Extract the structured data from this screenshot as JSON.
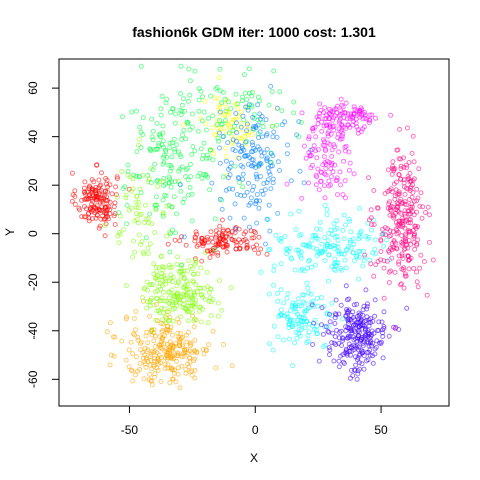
{
  "chart_data": {
    "type": "scatter",
    "title": "fashion6k GDM iter: 1000 cost: 1.301",
    "xlabel": "X",
    "ylabel": "Y",
    "xlim": [
      -78,
      77
    ],
    "ylim": [
      -71,
      72
    ],
    "x_ticks": [
      -50,
      0,
      50
    ],
    "x_tick_labels": [
      "-50",
      "0",
      "50"
    ],
    "y_ticks": [
      -60,
      -40,
      -20,
      0,
      20,
      40,
      60
    ],
    "y_tick_labels": [
      "-60",
      "-40",
      "-20",
      "0",
      "20",
      "40",
      "60"
    ],
    "grid": false,
    "legend": "none",
    "marker": "open-circle",
    "clusters": [
      {
        "color": "#FF0000",
        "center": [
          -63,
          14
        ],
        "spread": [
          5,
          7
        ],
        "count": 150
      },
      {
        "color": "#FF0000",
        "center": [
          -12,
          -3
        ],
        "spread": [
          10,
          4
        ],
        "count": 120
      },
      {
        "color": "#FFA500",
        "center": [
          -35,
          -48
        ],
        "spread": [
          11,
          9
        ],
        "count": 240
      },
      {
        "color": "#FFFF00",
        "center": [
          -10,
          45
        ],
        "spread": [
          8,
          8
        ],
        "count": 70
      },
      {
        "color": "#80FF00",
        "center": [
          -30,
          -24
        ],
        "spread": [
          9,
          8
        ],
        "count": 200
      },
      {
        "color": "#80FF00",
        "center": [
          -45,
          10
        ],
        "spread": [
          8,
          14
        ],
        "count": 70
      },
      {
        "color": "#00FF40",
        "center": [
          -33,
          30
        ],
        "spread": [
          12,
          20
        ],
        "count": 180
      },
      {
        "color": "#00FF40",
        "center": [
          -5,
          50
        ],
        "spread": [
          14,
          10
        ],
        "count": 70
      },
      {
        "color": "#00FFFF",
        "center": [
          30,
          -5
        ],
        "spread": [
          14,
          8
        ],
        "count": 160
      },
      {
        "color": "#00FFFF",
        "center": [
          18,
          -35
        ],
        "spread": [
          8,
          8
        ],
        "count": 110
      },
      {
        "color": "#0080FF",
        "center": [
          0,
          30
        ],
        "spread": [
          9,
          14
        ],
        "count": 160
      },
      {
        "color": "#4000FF",
        "center": [
          40,
          -42
        ],
        "spread": [
          8,
          10
        ],
        "count": 240
      },
      {
        "color": "#FF00FF",
        "center": [
          28,
          30
        ],
        "spread": [
          6,
          12
        ],
        "count": 90
      },
      {
        "color": "#FF00FF",
        "center": [
          35,
          47
        ],
        "spread": [
          9,
          5
        ],
        "count": 110
      },
      {
        "color": "#FF0080",
        "center": [
          58,
          5
        ],
        "spread": [
          6,
          17
        ],
        "count": 260
      }
    ]
  }
}
